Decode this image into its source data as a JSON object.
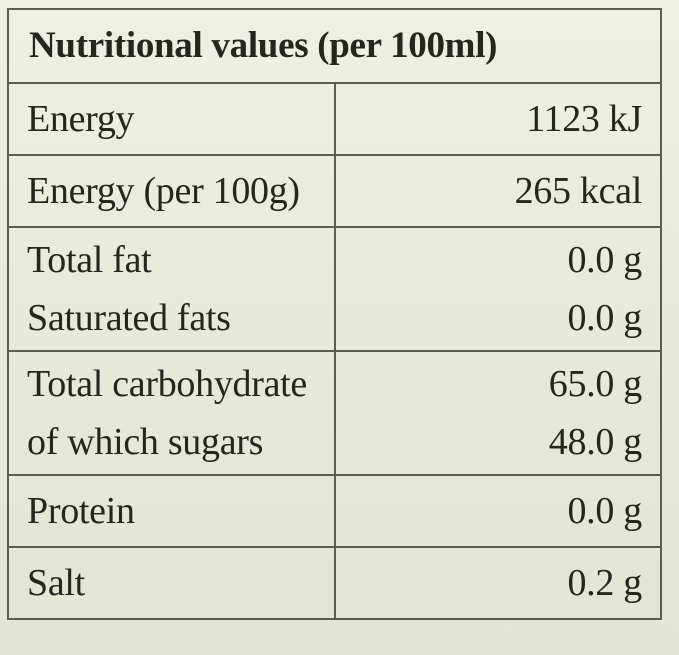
{
  "table": {
    "title": "Nutritional values (per 100ml)",
    "rows": [
      {
        "names": [
          "Energy"
        ],
        "values": [
          "1123 kJ"
        ]
      },
      {
        "names": [
          "Energy (per 100g)"
        ],
        "values": [
          "265 kcal"
        ]
      },
      {
        "names": [
          "Total fat",
          "Saturated fats"
        ],
        "values": [
          "0.0 g",
          "0.0 g"
        ]
      },
      {
        "names": [
          "Total carbohydrate",
          "of which sugars"
        ],
        "values": [
          "65.0 g",
          "48.0 g"
        ]
      },
      {
        "names": [
          "Protein"
        ],
        "values": [
          "0.0 g"
        ]
      },
      {
        "names": [
          "Salt"
        ],
        "values": [
          "0.2 g"
        ]
      }
    ]
  }
}
